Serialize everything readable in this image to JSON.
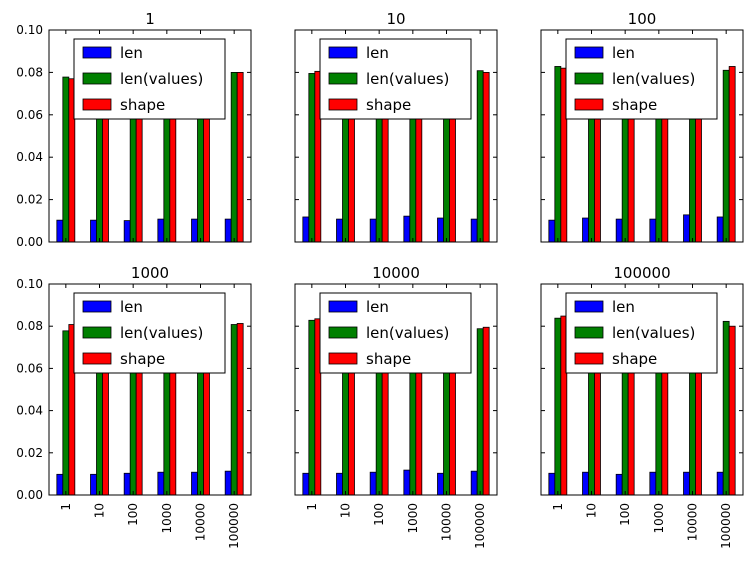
{
  "chart_data": {
    "type": "bar",
    "layout": "grid 2x3, shared y-axis, x tick labels on bottom row only",
    "categories": [
      "1",
      "10",
      "100",
      "1000",
      "10000",
      "100000"
    ],
    "ylim": [
      0,
      0.1
    ],
    "yticks": [
      "0.00",
      "0.02",
      "0.04",
      "0.06",
      "0.08",
      "0.10"
    ],
    "legend_position": "upper center",
    "series_colors": {
      "len": "#0000ff",
      "len(values)": "#008000",
      "shape": "#ff0000"
    },
    "panels": [
      {
        "title": "1",
        "series": [
          {
            "name": "len",
            "values": [
              0.0103,
              0.0103,
              0.0101,
              0.0108,
              0.0108,
              0.0108
            ]
          },
          {
            "name": "len(values)",
            "values": [
              0.0778,
              0.0778,
              0.0775,
              0.0778,
              0.0778,
              0.08
            ]
          },
          {
            "name": "shape",
            "values": [
              0.077,
              0.077,
              0.0768,
              0.077,
              0.077,
              0.08
            ]
          }
        ]
      },
      {
        "title": "10",
        "series": [
          {
            "name": "len",
            "values": [
              0.0118,
              0.0108,
              0.0108,
              0.0122,
              0.0113,
              0.0108
            ]
          },
          {
            "name": "len(values)",
            "values": [
              0.0795,
              0.0795,
              0.0795,
              0.0795,
              0.0795,
              0.0808
            ]
          },
          {
            "name": "shape",
            "values": [
              0.0805,
              0.08,
              0.08,
              0.08,
              0.08,
              0.08
            ]
          }
        ]
      },
      {
        "title": "100",
        "series": [
          {
            "name": "len",
            "values": [
              0.0103,
              0.0113,
              0.0108,
              0.0108,
              0.0128,
              0.0118
            ]
          },
          {
            "name": "len(values)",
            "values": [
              0.0828,
              0.082,
              0.082,
              0.082,
              0.082,
              0.081
            ]
          },
          {
            "name": "shape",
            "values": [
              0.082,
              0.082,
              0.082,
              0.082,
              0.082,
              0.0828
            ]
          }
        ]
      },
      {
        "title": "1000",
        "series": [
          {
            "name": "len",
            "values": [
              0.0098,
              0.0098,
              0.0103,
              0.0108,
              0.0108,
              0.0113
            ]
          },
          {
            "name": "len(values)",
            "values": [
              0.0778,
              0.0778,
              0.0778,
              0.078,
              0.078,
              0.0808
            ]
          },
          {
            "name": "shape",
            "values": [
              0.0808,
              0.08,
              0.08,
              0.08,
              0.08,
              0.0813
            ]
          }
        ]
      },
      {
        "title": "10000",
        "series": [
          {
            "name": "len",
            "values": [
              0.0103,
              0.0103,
              0.0108,
              0.0118,
              0.0103,
              0.0113
            ]
          },
          {
            "name": "len(values)",
            "values": [
              0.0828,
              0.0828,
              0.0828,
              0.0828,
              0.0828,
              0.0788
            ]
          },
          {
            "name": "shape",
            "values": [
              0.0835,
              0.0835,
              0.0835,
              0.0835,
              0.0835,
              0.0795
            ]
          }
        ]
      },
      {
        "title": "100000",
        "series": [
          {
            "name": "len",
            "values": [
              0.0103,
              0.0108,
              0.0098,
              0.0108,
              0.0108,
              0.0108
            ]
          },
          {
            "name": "len(values)",
            "values": [
              0.0838,
              0.0838,
              0.0838,
              0.0838,
              0.0838,
              0.0823
            ]
          },
          {
            "name": "shape",
            "values": [
              0.0848,
              0.0845,
              0.0845,
              0.0845,
              0.0845,
              0.08
            ]
          }
        ]
      }
    ]
  }
}
